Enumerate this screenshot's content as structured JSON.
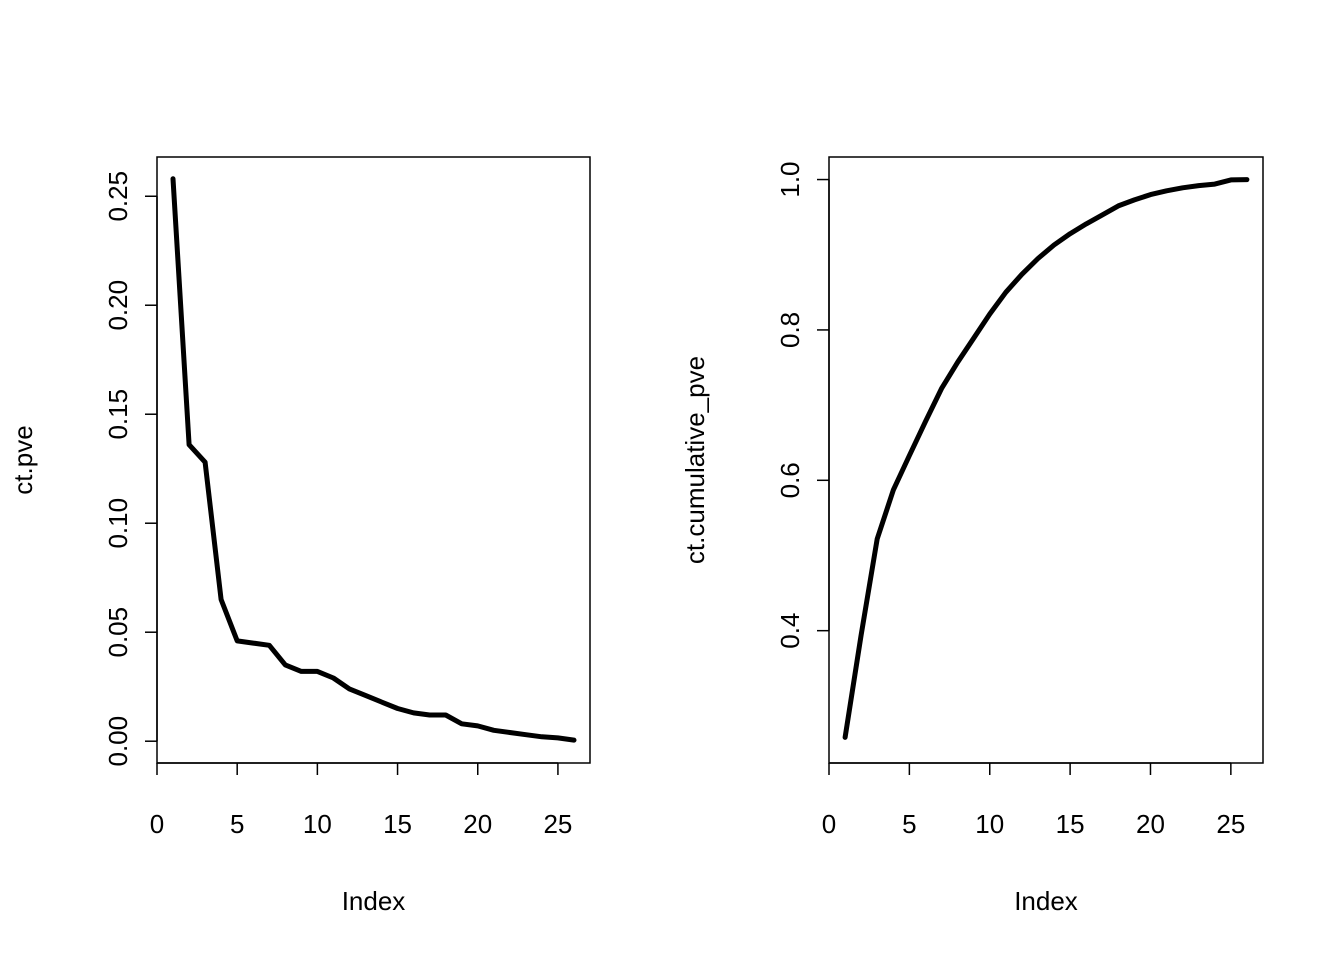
{
  "chart_data": [
    {
      "type": "line",
      "xlabel": "Index",
      "ylabel": "ct.pve",
      "xlim": [
        0,
        27
      ],
      "ylim": [
        -0.01,
        0.268
      ],
      "x_ticks": [
        0,
        5,
        10,
        15,
        20,
        25
      ],
      "x_tick_labels": [
        "0",
        "5",
        "10",
        "15",
        "20",
        "25"
      ],
      "y_ticks": [
        0.0,
        0.05,
        0.1,
        0.15,
        0.2,
        0.25
      ],
      "y_tick_labels": [
        "0.00",
        "0.05",
        "0.10",
        "0.15",
        "0.20",
        "0.25"
      ],
      "grid": false,
      "series": [
        {
          "color": "#000000",
          "x": [
            1,
            2,
            3,
            4,
            5,
            6,
            7,
            8,
            9,
            10,
            11,
            12,
            13,
            14,
            15,
            16,
            17,
            18,
            19,
            20,
            21,
            22,
            23,
            24,
            25,
            26
          ],
          "y": [
            0.258,
            0.136,
            0.128,
            0.065,
            0.046,
            0.045,
            0.044,
            0.035,
            0.032,
            0.032,
            0.029,
            0.024,
            0.021,
            0.018,
            0.015,
            0.013,
            0.012,
            0.012,
            0.008,
            0.007,
            0.005,
            0.004,
            0.003,
            0.002,
            0.0015,
            0.0005
          ]
        }
      ]
    },
    {
      "type": "line",
      "xlabel": "Index",
      "ylabel": "ct.cumulative_pve",
      "xlim": [
        0,
        27
      ],
      "ylim": [
        0.224,
        1.03
      ],
      "x_ticks": [
        0,
        5,
        10,
        15,
        20,
        25
      ],
      "x_tick_labels": [
        "0",
        "5",
        "10",
        "15",
        "20",
        "25"
      ],
      "y_ticks": [
        0.4,
        0.6,
        0.8,
        1.0
      ],
      "y_tick_labels": [
        "0.4",
        "0.6",
        "0.8",
        "1.0"
      ],
      "grid": false,
      "series": [
        {
          "color": "#000000",
          "x": [
            1,
            2,
            3,
            4,
            5,
            6,
            7,
            8,
            9,
            10,
            11,
            12,
            13,
            14,
            15,
            16,
            17,
            18,
            19,
            20,
            21,
            22,
            23,
            24,
            25,
            26
          ],
          "y": [
            0.258,
            0.394,
            0.522,
            0.587,
            0.633,
            0.678,
            0.722,
            0.757,
            0.789,
            0.821,
            0.85,
            0.874,
            0.895,
            0.913,
            0.928,
            0.941,
            0.953,
            0.965,
            0.973,
            0.98,
            0.985,
            0.989,
            0.992,
            0.994,
            0.9995,
            1.0
          ]
        }
      ]
    }
  ]
}
